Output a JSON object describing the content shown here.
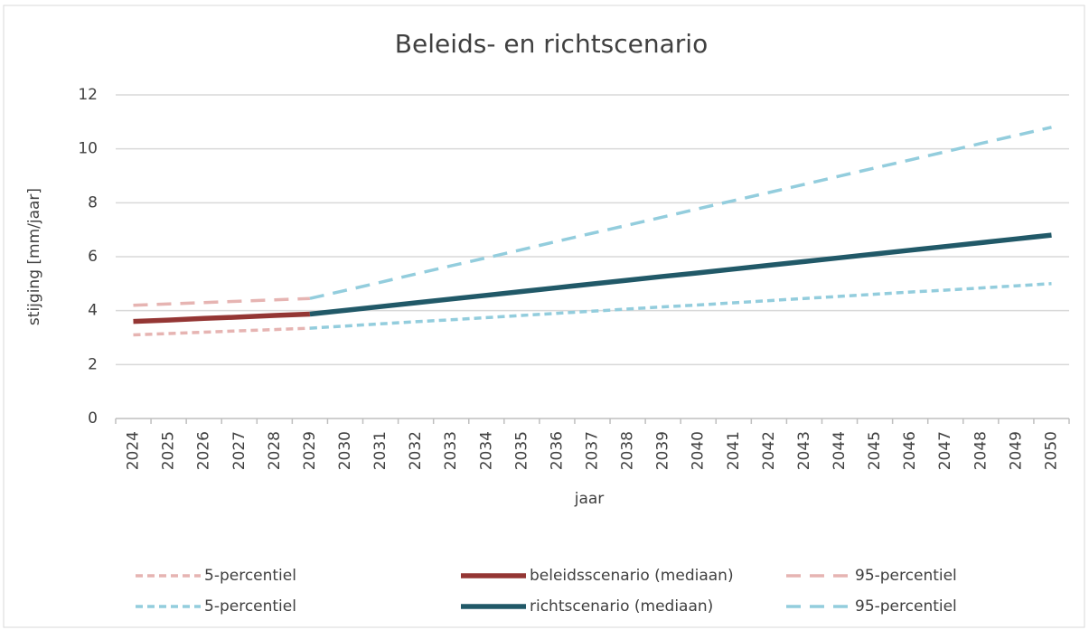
{
  "chart_data": {
    "type": "line",
    "title": "Beleids- en richtscenario",
    "x_label": "jaar",
    "y_label": "stijging [mm/jaar]",
    "categories": [
      "2024",
      "2025",
      "2026",
      "2027",
      "2028",
      "2029",
      "2030",
      "2031",
      "2032",
      "2033",
      "2034",
      "2035",
      "2036",
      "2037",
      "2038",
      "2039",
      "2040",
      "2041",
      "2042",
      "2043",
      "2044",
      "2045",
      "2046",
      "2047",
      "2048",
      "2049",
      "2050"
    ],
    "ylim": [
      0,
      12
    ],
    "yticks": [
      0,
      2,
      4,
      6,
      8,
      10,
      12
    ],
    "grid": true,
    "legend": "bottom",
    "series": [
      {
        "name": "5-percentiel",
        "color": "#e6b4b2",
        "dash": "short",
        "values": [
          3.1,
          3.15,
          3.2,
          3.25,
          3.3,
          3.35,
          null,
          null,
          null,
          null,
          null,
          null,
          null,
          null,
          null,
          null,
          null,
          null,
          null,
          null,
          null,
          null,
          null,
          null,
          null,
          null,
          null
        ]
      },
      {
        "name": "beleidsscenario (mediaan)",
        "color": "#943634",
        "dash": "solid",
        "values": [
          3.6,
          3.65,
          3.71,
          3.76,
          3.82,
          3.87,
          null,
          null,
          null,
          null,
          null,
          null,
          null,
          null,
          null,
          null,
          null,
          null,
          null,
          null,
          null,
          null,
          null,
          null,
          null,
          null,
          null
        ]
      },
      {
        "name": "95-percentiel",
        "color": "#e6b4b2",
        "dash": "long",
        "values": [
          4.2,
          4.25,
          4.3,
          4.35,
          4.4,
          4.45,
          null,
          null,
          null,
          null,
          null,
          null,
          null,
          null,
          null,
          null,
          null,
          null,
          null,
          null,
          null,
          null,
          null,
          null,
          null,
          null,
          null
        ]
      },
      {
        "name": "5-percentiel",
        "color": "#93cddd",
        "dash": "short",
        "values": [
          null,
          null,
          null,
          null,
          null,
          3.35,
          3.43,
          3.51,
          3.59,
          3.66,
          3.74,
          3.82,
          3.9,
          3.98,
          4.06,
          4.14,
          4.21,
          4.29,
          4.37,
          4.45,
          4.53,
          4.61,
          4.69,
          4.76,
          4.84,
          4.92,
          5.0
        ]
      },
      {
        "name": "richtscenario (mediaan)",
        "color": "#215968",
        "dash": "solid",
        "values": [
          null,
          null,
          null,
          null,
          null,
          3.87,
          4.01,
          4.15,
          4.29,
          4.43,
          4.57,
          4.71,
          4.85,
          4.99,
          5.13,
          5.27,
          5.4,
          5.54,
          5.68,
          5.82,
          5.96,
          6.1,
          6.24,
          6.38,
          6.52,
          6.66,
          6.8
        ]
      },
      {
        "name": "95-percentiel",
        "color": "#93cddd",
        "dash": "long",
        "values": [
          null,
          null,
          null,
          null,
          null,
          4.45,
          4.75,
          5.05,
          5.36,
          5.66,
          5.96,
          6.26,
          6.57,
          6.87,
          7.17,
          7.47,
          7.78,
          8.08,
          8.38,
          8.68,
          8.99,
          9.29,
          9.59,
          9.89,
          10.2,
          10.5,
          10.8
        ]
      }
    ]
  }
}
